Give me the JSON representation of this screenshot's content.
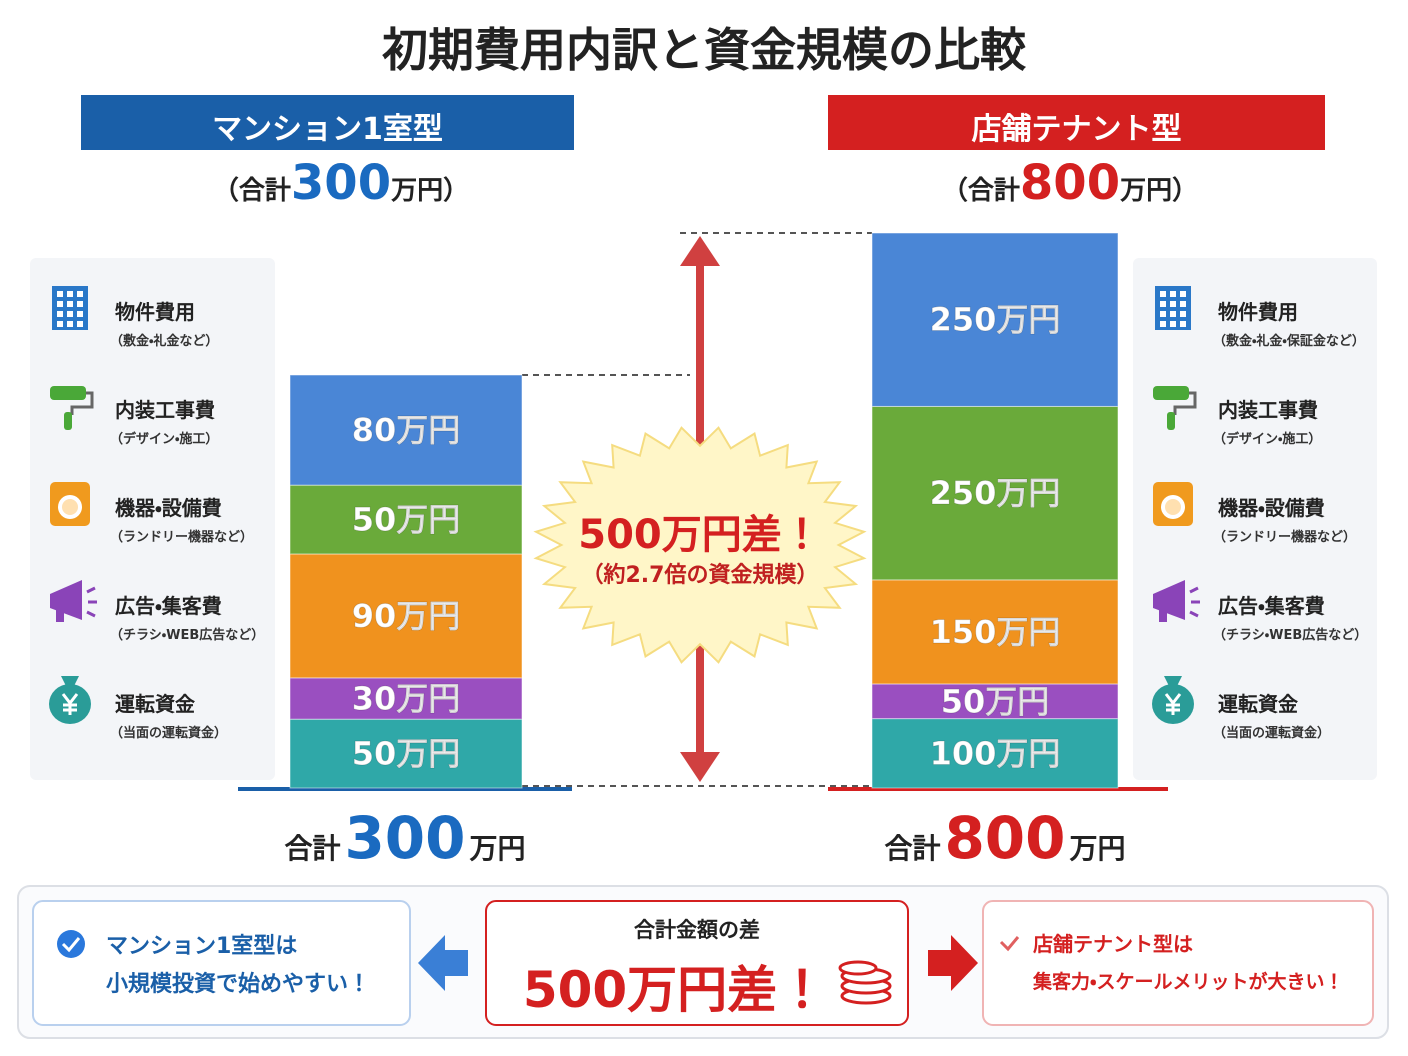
{
  "title": "初期費用内訳と資金規模の比較",
  "chart_data": [
    {
      "type": "stacked-bar",
      "name": "マンション1室型",
      "color": "#1a5fa8",
      "total_top": {
        "prefix": "（合計",
        "value": 300,
        "suffix": "万円）"
      },
      "total_bottom": {
        "prefix": "合計",
        "value": 300,
        "suffix": "万円"
      },
      "categories": [
        "物件費用",
        "内装工事費",
        "機器・設備費",
        "広告・集客費",
        "運転資金"
      ],
      "notes": [
        "（敷金・礼金など）",
        "（デザイン・施工）",
        "（ランドリー機器など）",
        "（チラシ・WEB広告など）",
        "（当面の運転資金）"
      ],
      "values": [
        80,
        50,
        90,
        30,
        50
      ],
      "value_labels": [
        "80万円",
        "50万円",
        "90万円",
        "30万円",
        "50万円"
      ],
      "colors": [
        "#4a86d6",
        "#6aaa3a",
        "#f0921e",
        "#9a4fc0",
        "#2fa8a8"
      ],
      "ylim": [
        0,
        300
      ]
    },
    {
      "type": "stacked-bar",
      "name": "店舗テナント型",
      "color": "#d42020",
      "total_top": {
        "prefix": "（合計",
        "value": 800,
        "suffix": "万円）"
      },
      "total_bottom": {
        "prefix": "合計",
        "value": 800,
        "suffix": "万円"
      },
      "categories": [
        "物件費用",
        "内装工事費",
        "機器・設備費",
        "広告・集客費",
        "運転資金"
      ],
      "notes": [
        "（敷金・礼金・保証金など）",
        "（デザイン・施工）",
        "（ランドリー機器など）",
        "（チラシ・WEB広告など）",
        "（当面の運転資金）"
      ],
      "values": [
        250,
        250,
        150,
        50,
        100
      ],
      "value_labels": [
        "250万円",
        "250万円",
        "150万円",
        "50万円",
        "100万円"
      ],
      "colors": [
        "#4a86d6",
        "#6aaa3a",
        "#f0921e",
        "#9a4fc0",
        "#2fa8a8"
      ],
      "ylim": [
        0,
        800
      ]
    }
  ],
  "comparison": {
    "difference": "500万円差！",
    "ratio": "（約2.7倍の資金規模）"
  },
  "summary": {
    "left": [
      "マンション1室型は",
      "小規模投資で始めやすい！"
    ],
    "center_title": "合計金額の差",
    "center_value": "500万円差！",
    "right": [
      "店舗テナント型は",
      "集客力・スケールメリットが大きい！"
    ]
  }
}
